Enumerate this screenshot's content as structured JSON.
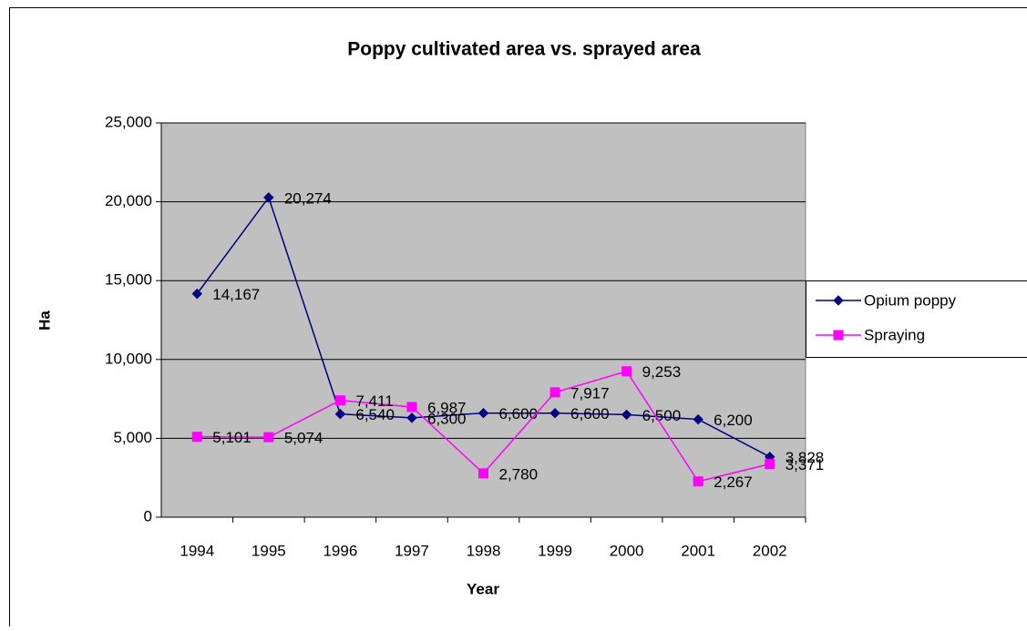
{
  "chart_data": {
    "type": "line",
    "title": "Poppy cultivated area vs. sprayed area",
    "x_label": "Year",
    "y_label": "Ha",
    "categories": [
      "1994",
      "1995",
      "1996",
      "1997",
      "1998",
      "1999",
      "2000",
      "2001",
      "2002"
    ],
    "series": [
      {
        "name": "Opium poppy",
        "color": "#000080",
        "marker": "diamond",
        "values": [
          14167,
          20274,
          6540,
          6300,
          6600,
          6600,
          6500,
          6200,
          3828
        ],
        "value_labels": [
          "14,167",
          "20,274",
          "6,540",
          "6,300",
          "6,600",
          "6,600",
          "6,500",
          "6,200",
          "3,828"
        ]
      },
      {
        "name": "Spraying",
        "color": "#ff00ff",
        "marker": "square",
        "values": [
          5101,
          5074,
          7411,
          6987,
          2780,
          7917,
          9253,
          2267,
          3371
        ],
        "value_labels": [
          "5,101",
          "5,074",
          "7,411",
          "6,987",
          "2,780",
          "7,917",
          "9,253",
          "2,267",
          "3,371"
        ]
      }
    ],
    "ylim": [
      0,
      25000
    ],
    "yticks": [
      0,
      {
        "value": 5000,
        "label": "5,000"
      },
      {
        "value": 10000,
        "label": "10,000"
      },
      {
        "value": 15000,
        "label": "15,000"
      },
      {
        "value": 20000,
        "label": "20,000"
      },
      {
        "value": 25000,
        "label": "25,000"
      }
    ],
    "grid": true,
    "legend": "right"
  }
}
